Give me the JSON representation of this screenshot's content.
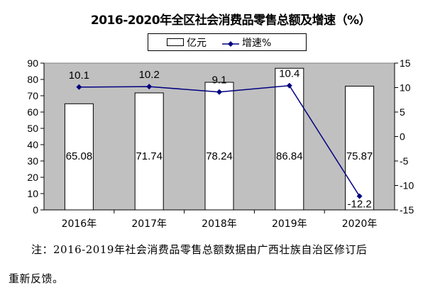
{
  "chart_data": {
    "type": "bar+line",
    "title": "2016-2020年全区社会消费品零售总额及增速（%）",
    "categories": [
      "2016年",
      "2017年",
      "2018年",
      "2019年",
      "2020年"
    ],
    "series": [
      {
        "name": "亿元",
        "type": "bar",
        "axis": "left",
        "values": [
          65.08,
          71.74,
          78.24,
          86.84,
          75.87
        ],
        "labels": [
          "65.08",
          "71.74",
          "78.24",
          "86.84",
          "75.87"
        ]
      },
      {
        "name": "增速%",
        "type": "line",
        "axis": "right",
        "values": [
          10.1,
          10.2,
          9.1,
          10.4,
          -12.2
        ],
        "labels": [
          "10.1",
          "10.2",
          "9.1",
          "10.4",
          "-12.2"
        ],
        "color": "#000080"
      }
    ],
    "left_axis": {
      "range": [
        0,
        90
      ],
      "ticks": [
        "0",
        "10",
        "20",
        "30",
        "40",
        "50",
        "60",
        "70",
        "80",
        "90"
      ]
    },
    "right_axis": {
      "range": [
        -15,
        15
      ],
      "ticks": [
        "-15",
        "-10",
        "-5",
        "0",
        "5",
        "10",
        "15"
      ]
    },
    "plot_background": "#c0c0c0",
    "legend_position": "top"
  },
  "note": {
    "line1": "注：2016-2019年社会消费品零售总额数据由广西壮族自治区修订后",
    "line2": "重新反馈。"
  }
}
